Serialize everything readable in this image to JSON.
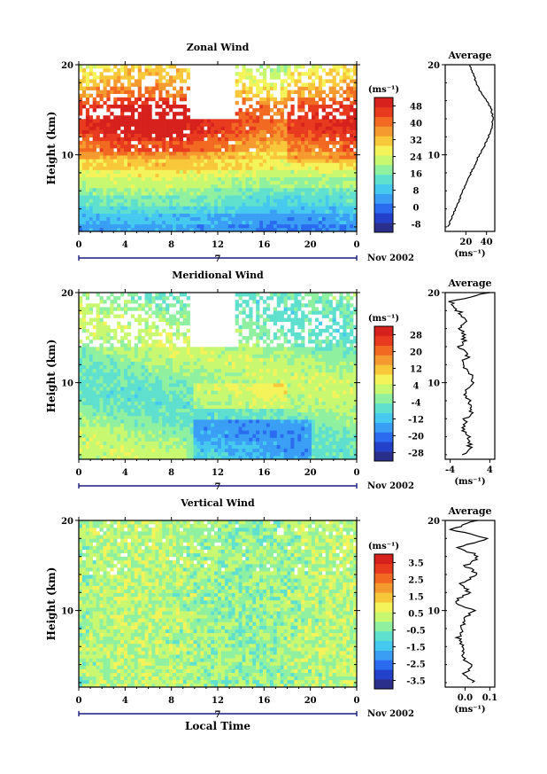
{
  "colors": {
    "scale": [
      "#2b2f8c",
      "#2240c8",
      "#2a6bf0",
      "#3a9ef5",
      "#46c9ef",
      "#5fe0cf",
      "#8ff0a0",
      "#c8f870",
      "#f5f35a",
      "#f8c83a",
      "#f59a2e",
      "#f26a22",
      "#e83a1e",
      "#d6211d"
    ],
    "frame": "#000000",
    "timeline": "#1a1a80"
  },
  "shared": {
    "ylabel": "Height (km)",
    "xticks": [
      "0",
      "4",
      "8",
      "12",
      "16",
      "20",
      "0"
    ],
    "yticks": [
      "20",
      "10"
    ],
    "date_marker": "7",
    "date_label": "Nov 2002",
    "units_label": "(ms⁻¹)",
    "xlabel_bottom": "Local Time",
    "avg_xunit": "(ms⁻¹)"
  },
  "panels": [
    {
      "title": "Zonal Wind",
      "avg_title": "Average",
      "colorbar_ticks": [
        "48",
        "40",
        "32",
        "24",
        "16",
        "8",
        "0",
        "-8"
      ],
      "avg_xticks": [
        "20",
        "40"
      ]
    },
    {
      "title": "Meridional Wind",
      "avg_title": "Average",
      "colorbar_ticks": [
        "28",
        "20",
        "12",
        "4",
        "-4",
        "-12",
        "-20",
        "-28"
      ],
      "avg_xticks": [
        "-4",
        "4"
      ]
    },
    {
      "title": "Vertical Wind",
      "avg_title": "Average",
      "colorbar_ticks": [
        "3.5",
        "2.5",
        "1.5",
        "0.5",
        "-0.5",
        "-1.5",
        "-2.5",
        "-3.5"
      ],
      "avg_xticks": [
        "0.0",
        "0.1"
      ]
    }
  ],
  "chart_data": [
    {
      "type": "heatmap",
      "title": "Zonal Wind",
      "xlabel": "",
      "ylabel": "Height (km)",
      "xlim": [
        0,
        24
      ],
      "ylim": [
        1.5,
        20
      ],
      "units": "ms⁻¹",
      "colorbar_range": [
        -12,
        52
      ],
      "colorbar_ticks": [
        48,
        40,
        32,
        24,
        16,
        8,
        0,
        -8
      ],
      "height_km": [
        2,
        4,
        6,
        8,
        10,
        12,
        14,
        16,
        18,
        20
      ],
      "mean_by_height": [
        4,
        10,
        17,
        24,
        32,
        40,
        44,
        40,
        30,
        24
      ],
      "average_profile": {
        "title": "Average",
        "xlim": [
          0,
          48
        ],
        "xticks": [
          20,
          40
        ],
        "height_km": [
          2,
          3,
          4,
          5,
          6,
          7,
          8,
          9,
          10,
          11,
          12,
          13,
          14,
          15,
          16,
          17,
          18,
          19,
          20
        ],
        "values": [
          3,
          6,
          10,
          14,
          17,
          21,
          25,
          29,
          33,
          38,
          42,
          45,
          46,
          45,
          40,
          34,
          30,
          27,
          24
        ]
      }
    },
    {
      "type": "heatmap",
      "title": "Meridional Wind",
      "xlabel": "",
      "ylabel": "Height (km)",
      "xlim": [
        0,
        24
      ],
      "ylim": [
        1.5,
        20
      ],
      "units": "ms⁻¹",
      "colorbar_range": [
        -32,
        32
      ],
      "colorbar_ticks": [
        28,
        20,
        12,
        4,
        -4,
        -12,
        -20,
        -28
      ],
      "average_profile": {
        "title": "Average",
        "xlim": [
          -5,
          5
        ],
        "xticks": [
          -4,
          4
        ],
        "height_km": [
          2,
          3,
          4,
          5,
          6,
          7,
          8,
          9,
          10,
          11,
          12,
          13,
          14,
          15,
          16,
          17,
          18,
          19,
          20
        ],
        "values": [
          -1,
          0,
          -0.5,
          -1.5,
          -1,
          0.5,
          0,
          -1,
          0.5,
          0,
          -1.5,
          -0.5,
          -2,
          -1,
          -2,
          -0.5,
          -2.5,
          -4,
          4
        ]
      }
    },
    {
      "type": "heatmap",
      "title": "Vertical Wind",
      "xlabel": "Local Time",
      "ylabel": "Height (km)",
      "xlim": [
        0,
        24
      ],
      "ylim": [
        1.5,
        20
      ],
      "units": "ms⁻¹",
      "colorbar_range": [
        -4,
        4
      ],
      "colorbar_ticks": [
        3.5,
        2.5,
        1.5,
        0.5,
        -0.5,
        -1.5,
        -2.5,
        -3.5
      ],
      "average_profile": {
        "title": "Average",
        "xlim": [
          -0.08,
          0.12
        ],
        "xticks": [
          0.0,
          0.1
        ],
        "height_km": [
          2,
          3,
          4,
          5,
          6,
          7,
          8,
          9,
          10,
          11,
          12,
          13,
          14,
          15,
          16,
          17,
          18,
          19,
          20
        ],
        "values": [
          0.04,
          0.0,
          0.02,
          -0.02,
          0.0,
          -0.03,
          -0.01,
          0.0,
          0.03,
          -0.04,
          0.02,
          -0.02,
          0.05,
          0.0,
          0.06,
          -0.03,
          0.09,
          -0.06,
          0.05
        ]
      }
    }
  ]
}
